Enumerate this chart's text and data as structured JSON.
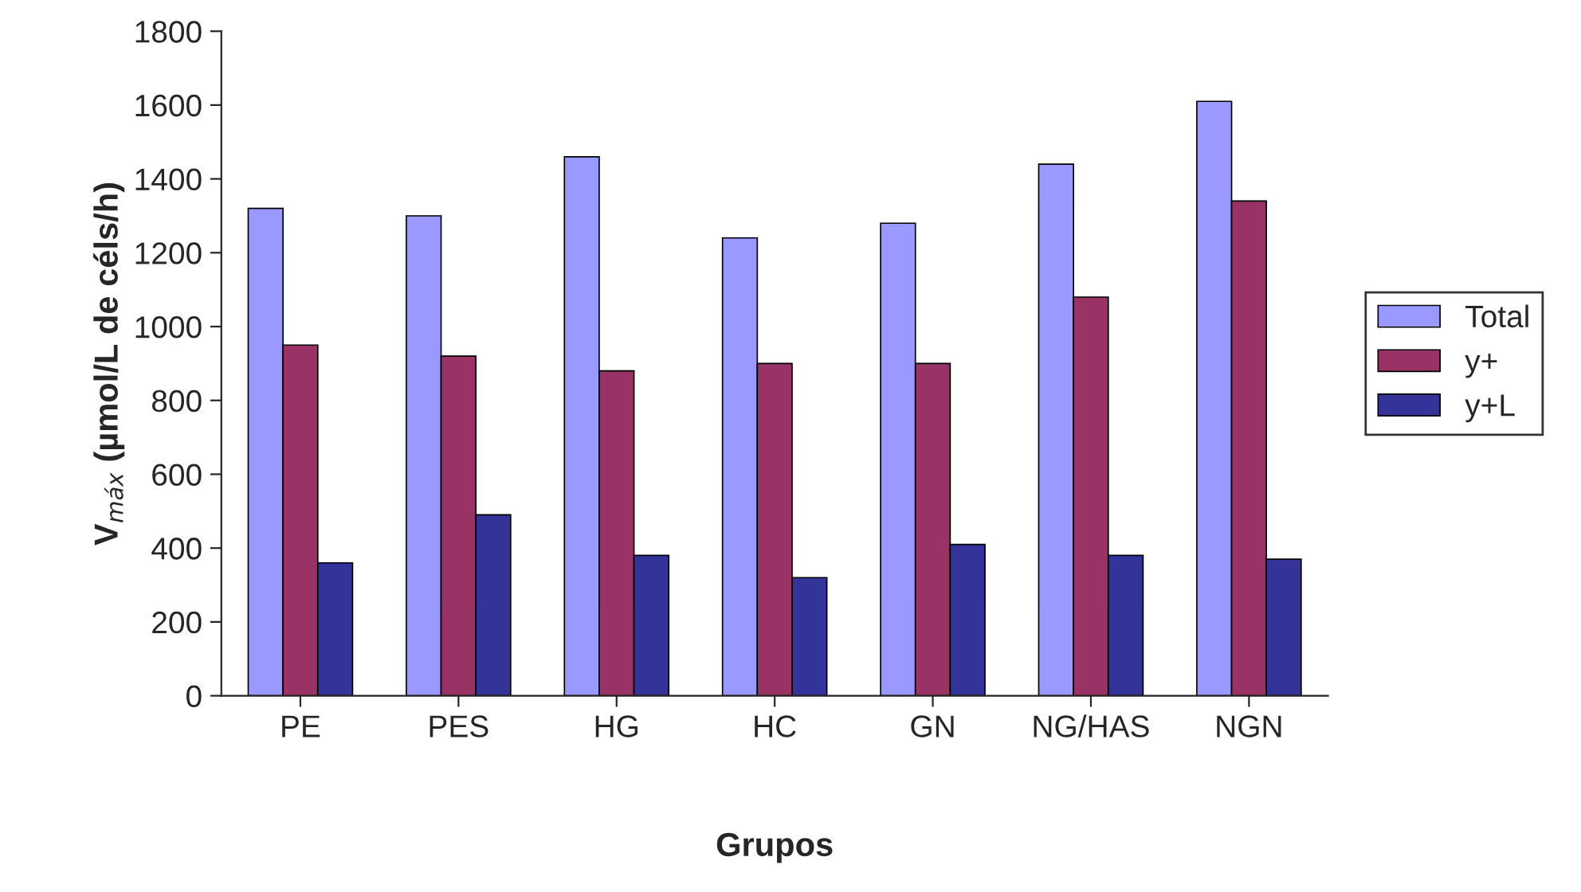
{
  "chart_data": {
    "type": "bar",
    "xlabel": "Grupos",
    "ylabel": "V$_{máx}$ (µmol/L de céls/h)",
    "categories": [
      "PE",
      "PES",
      "HG",
      "HC",
      "GN",
      "NG/HAS",
      "NGN"
    ],
    "series": [
      {
        "name": "Total",
        "color": "#9999ff",
        "values": [
          1320,
          1300,
          1460,
          1240,
          1280,
          1440,
          1610
        ]
      },
      {
        "name": "y+",
        "color": "#993366",
        "values": [
          950,
          920,
          880,
          900,
          900,
          1080,
          1340
        ]
      },
      {
        "name": "y+L",
        "color": "#333399",
        "values": [
          360,
          490,
          380,
          320,
          410,
          380,
          370
        ]
      }
    ],
    "ylim": [
      0,
      1800
    ],
    "yticks": [
      0,
      200,
      400,
      600,
      800,
      1000,
      1200,
      1400,
      1600,
      1800
    ],
    "grid": false,
    "legend": "right"
  }
}
